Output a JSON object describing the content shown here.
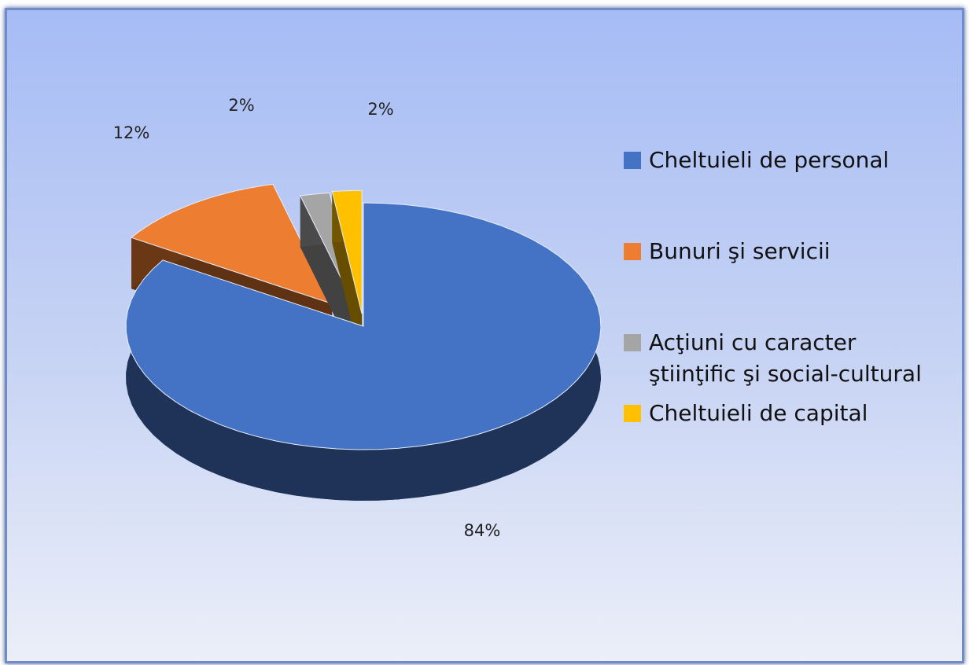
{
  "chart_data": {
    "type": "pie",
    "categories": [
      "Cheltuieli de personal",
      "Bunuri şi servicii",
      "Acţiuni cu caracter ştiinţific şi social-cultural",
      "Cheltuieli de capital"
    ],
    "values": [
      84,
      12,
      2,
      2
    ],
    "value_labels": [
      "84%",
      "12%",
      "2%",
      "2%"
    ],
    "colors": [
      "#4472c4",
      "#ed7d31",
      "#a5a5a5",
      "#ffc000"
    ],
    "legend": "right"
  }
}
